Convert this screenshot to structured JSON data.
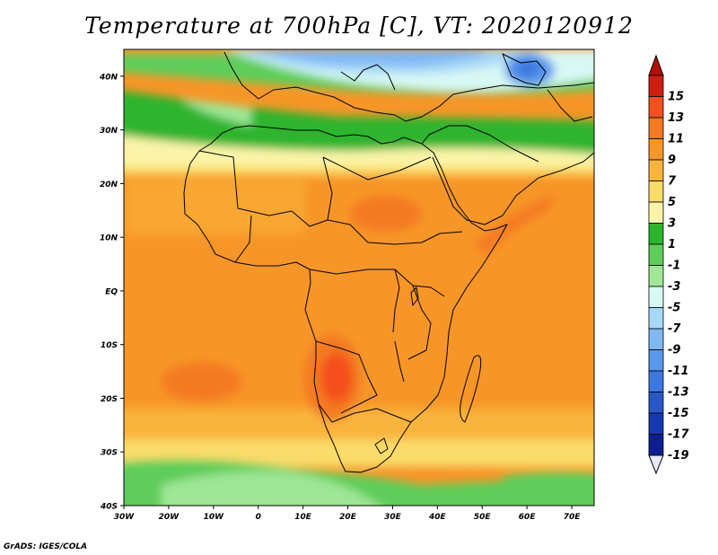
{
  "title": "Temperature at 700hPa [C], VT: 2020120912",
  "credit": "GrADS: IGES/COLA",
  "map": {
    "lon_range": [
      -30,
      75
    ],
    "lat_range": [
      -40,
      45
    ],
    "lat_ticks": [
      {
        "value": 40,
        "label": "40N"
      },
      {
        "value": 30,
        "label": "30N"
      },
      {
        "value": 20,
        "label": "20N"
      },
      {
        "value": 10,
        "label": "10N"
      },
      {
        "value": 0,
        "label": "EQ"
      },
      {
        "value": -10,
        "label": "10S"
      },
      {
        "value": -20,
        "label": "20S"
      },
      {
        "value": -30,
        "label": "30S"
      },
      {
        "value": -40,
        "label": "40S"
      }
    ],
    "lon_ticks": [
      {
        "value": -30,
        "label": "30W"
      },
      {
        "value": -20,
        "label": "20W"
      },
      {
        "value": -10,
        "label": "10W"
      },
      {
        "value": 0,
        "label": "0"
      },
      {
        "value": 10,
        "label": "10E"
      },
      {
        "value": 20,
        "label": "20E"
      },
      {
        "value": 30,
        "label": "30E"
      },
      {
        "value": 40,
        "label": "40E"
      },
      {
        "value": 50,
        "label": "50E"
      },
      {
        "value": 60,
        "label": "60E"
      },
      {
        "value": 70,
        "label": "70E"
      }
    ]
  },
  "colorbar": {
    "levels": [
      {
        "label": "15",
        "color": "#ce1e12"
      },
      {
        "label": "13",
        "color": "#f4501e"
      },
      {
        "label": "11",
        "color": "#f47a22"
      },
      {
        "label": "9",
        "color": "#f79628"
      },
      {
        "label": "7",
        "color": "#f9b43c"
      },
      {
        "label": "5",
        "color": "#fadc6a"
      },
      {
        "label": "3",
        "color": "#fbf4a8"
      },
      {
        "label": "1",
        "color": "#2db42d"
      },
      {
        "label": "-1",
        "color": "#5fcd5a"
      },
      {
        "label": "-3",
        "color": "#9fe696"
      },
      {
        "label": "-5",
        "color": "#d8f8f4"
      },
      {
        "label": "-7",
        "color": "#a8d8f8"
      },
      {
        "label": "-9",
        "color": "#80b8f4"
      },
      {
        "label": "-11",
        "color": "#5a98ec"
      },
      {
        "label": "-13",
        "color": "#3c78e0"
      },
      {
        "label": "-15",
        "color": "#2858c8"
      },
      {
        "label": "-17",
        "color": "#1638b0"
      },
      {
        "label": "-19",
        "color": "#0c1e90"
      }
    ],
    "top_color": "#b41008",
    "bottom_color": "#e8e8ff"
  }
}
